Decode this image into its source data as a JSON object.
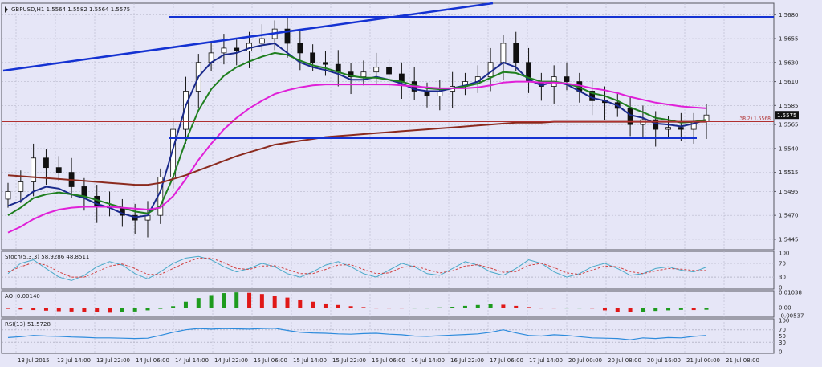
{
  "colors": {
    "background": "#e6e6f7",
    "grid": "#b9b9cc",
    "panel_border": "#55555f",
    "text": "#222222",
    "candle": "#111111",
    "price_tag_bg": "#111111",
    "ema_fast": "#1a2a8c",
    "ema_mid": "#1f7f1f",
    "ema_slow": "#e020d8",
    "ma_long": "#8b2a1e",
    "trendline": "#1432d2",
    "fib": "#b03030",
    "stoch_main": "#4aa9c8",
    "stoch_signal": "#d04040",
    "ao_up": "#1e9b1e",
    "ao_down": "#e01818",
    "rsi": "#2d8bdc"
  },
  "chart_data": [
    {
      "type": "candlestick",
      "title": "GBPUSD,H1",
      "ohlc_header": "1.5564 1.5582 1.5564 1.5575",
      "last_price": "1.5575",
      "y_ticks": [
        "1.5680",
        "1.5655",
        "1.5630",
        "1.5610",
        "1.5585",
        "1.5565",
        "1.5540",
        "1.5515",
        "1.5495",
        "1.5470",
        "1.5445"
      ],
      "ylim": [
        1.5434,
        1.5692
      ],
      "x_tick_labels": [
        "13 Jul 2015",
        "13 Jul 14:00",
        "13 Jul 22:00",
        "14 Jul 06:00",
        "14 Jul 14:00",
        "14 Jul 22:00",
        "15 Jul 06:00",
        "15 Jul 14:00",
        "15 Jul 22:00",
        "16 Jul 06:00",
        "16 Jul 14:00",
        "16 Jul 22:00",
        "17 Jul 06:00",
        "17 Jul 14:00",
        "20 Jul 00:00",
        "20 Jul 08:00",
        "20 Jul 16:00",
        "21 Jul 00:00",
        "21 Jul 08:00"
      ],
      "fib_label": "38.2) 1.5568",
      "fib_level": 1.5568,
      "close": [
        1.5495,
        1.5505,
        1.553,
        1.552,
        1.5515,
        1.55,
        1.549,
        1.548,
        1.5478,
        1.547,
        1.5465,
        1.547,
        1.551,
        1.556,
        1.56,
        1.563,
        1.564,
        1.5645,
        1.5642,
        1.565,
        1.5655,
        1.5665,
        1.565,
        1.564,
        1.563,
        1.5628,
        1.562,
        1.5615,
        1.562,
        1.5625,
        1.5618,
        1.561,
        1.56,
        1.5595,
        1.56,
        1.5605,
        1.561,
        1.5615,
        1.563,
        1.565,
        1.563,
        1.561,
        1.5605,
        1.5615,
        1.561,
        1.56,
        1.559,
        1.5588,
        1.5582,
        1.5565,
        1.557,
        1.556,
        1.5562,
        1.556,
        1.5568,
        1.5575
      ],
      "series": [
        {
          "name": "",
          "values": [
            1.548,
            1.5485,
            1.5495,
            1.55,
            1.5498,
            1.5492,
            1.5488,
            1.5482,
            1.5478,
            1.5472,
            1.5468,
            1.547,
            1.5495,
            1.554,
            1.5585,
            1.5615,
            1.563,
            1.5638,
            1.564,
            1.5645,
            1.5648,
            1.565,
            1.564,
            1.563,
            1.5625,
            1.5622,
            1.5618,
            1.5612,
            1.5612,
            1.5615,
            1.5612,
            1.5608,
            1.5602,
            1.56,
            1.56,
            1.5603,
            1.5606,
            1.561,
            1.562,
            1.563,
            1.5625,
            1.5612,
            1.5606,
            1.561,
            1.5607,
            1.56,
            1.5593,
            1.559,
            1.5585,
            1.5575,
            1.5572,
            1.5566,
            1.5565,
            1.5563,
            1.5566,
            1.557
          ]
        },
        {
          "name": "",
          "values": [
            1.547,
            1.5478,
            1.5488,
            1.5492,
            1.5494,
            1.5492,
            1.549,
            1.5486,
            1.5482,
            1.5478,
            1.5474,
            1.5472,
            1.548,
            1.551,
            1.5548,
            1.558,
            1.5602,
            1.5616,
            1.5625,
            1.5631,
            1.5636,
            1.564,
            1.5638,
            1.5632,
            1.5627,
            1.5624,
            1.562,
            1.5616,
            1.5614,
            1.5614,
            1.5612,
            1.561,
            1.5606,
            1.5603,
            1.5602,
            1.5603,
            1.5605,
            1.5608,
            1.5614,
            1.562,
            1.5619,
            1.5614,
            1.561,
            1.561,
            1.5608,
            1.5604,
            1.5598,
            1.5595,
            1.559,
            1.5583,
            1.5578,
            1.5572,
            1.557,
            1.5567,
            1.5568,
            1.557
          ]
        },
        {
          "name": "",
          "values": [
            1.5452,
            1.5458,
            1.5466,
            1.5472,
            1.5476,
            1.5478,
            1.5479,
            1.5479,
            1.5479,
            1.5478,
            1.5477,
            1.5476,
            1.5478,
            1.549,
            1.5508,
            1.5528,
            1.5545,
            1.556,
            1.5572,
            1.5582,
            1.559,
            1.5597,
            1.5601,
            1.5604,
            1.5606,
            1.5607,
            1.5607,
            1.5607,
            1.5607,
            1.5607,
            1.5607,
            1.5606,
            1.5605,
            1.5604,
            1.5603,
            1.5603,
            1.5603,
            1.5604,
            1.5606,
            1.5609,
            1.561,
            1.561,
            1.5609,
            1.5609,
            1.5608,
            1.5606,
            1.5603,
            1.5601,
            1.5598,
            1.5594,
            1.5591,
            1.5588,
            1.5586,
            1.5584,
            1.5583,
            1.5582
          ]
        },
        {
          "name": "",
          "values": [
            1.5512,
            1.5511,
            1.551,
            1.5509,
            1.5508,
            1.5507,
            1.5506,
            1.5505,
            1.5504,
            1.5503,
            1.5502,
            1.5502,
            1.5504,
            1.5508,
            1.5512,
            1.5517,
            1.5522,
            1.5527,
            1.5532,
            1.5536,
            1.554,
            1.5544,
            1.5546,
            1.5548,
            1.555,
            1.5552,
            1.5553,
            1.5554,
            1.5555,
            1.5556,
            1.5557,
            1.5558,
            1.5559,
            1.556,
            1.5561,
            1.5562,
            1.5563,
            1.5564,
            1.5565,
            1.5566,
            1.5567,
            1.5567,
            1.5567,
            1.5568,
            1.5568,
            1.5568,
            1.5568,
            1.5568,
            1.5568,
            1.5568,
            1.5568,
            1.5568,
            1.5568,
            1.5568,
            1.5568,
            1.5568
          ]
        }
      ]
    },
    {
      "type": "line",
      "title": "Stoch(5,3,3) 58.9286 48.8511",
      "y_ticks": [
        "100",
        "70",
        "30",
        "0"
      ],
      "ylim": [
        0,
        100
      ],
      "levels": [
        70,
        30
      ],
      "series": [
        {
          "name": "",
          "values": [
            40,
            70,
            80,
            55,
            30,
            20,
            35,
            60,
            75,
            65,
            40,
            25,
            45,
            70,
            85,
            90,
            80,
            60,
            45,
            55,
            70,
            60,
            40,
            30,
            45,
            65,
            75,
            60,
            40,
            30,
            50,
            70,
            60,
            40,
            35,
            55,
            75,
            65,
            45,
            35,
            55,
            80,
            70,
            45,
            30,
            40,
            60,
            70,
            55,
            35,
            40,
            55,
            60,
            50,
            45,
            59
          ]
        },
        {
          "name": "",
          "values": [
            45,
            60,
            72,
            65,
            45,
            30,
            30,
            45,
            62,
            68,
            55,
            38,
            38,
            55,
            72,
            85,
            85,
            72,
            55,
            52,
            62,
            63,
            52,
            40,
            40,
            52,
            65,
            66,
            52,
            40,
            42,
            58,
            62,
            52,
            42,
            48,
            62,
            66,
            56,
            44,
            46,
            64,
            70,
            58,
            42,
            38,
            50,
            62,
            60,
            46,
            40,
            48,
            55,
            53,
            49,
            49
          ]
        }
      ]
    },
    {
      "type": "bar",
      "title": "AO -0.00140",
      "y_ticks": [
        "0.01038",
        "0.00",
        "-0.00537"
      ],
      "ylim": [
        -0.00537,
        0.01038
      ],
      "values": [
        -0.0008,
        -0.0012,
        -0.0016,
        -0.002,
        -0.0024,
        -0.0026,
        -0.003,
        -0.0032,
        -0.0034,
        -0.003,
        -0.0026,
        -0.0018,
        -0.0008,
        0.001,
        0.004,
        0.0065,
        0.0085,
        0.0098,
        0.0103,
        0.01,
        0.0092,
        0.008,
        0.0068,
        0.0055,
        0.004,
        0.0028,
        0.0018,
        0.001,
        0.0004,
        0.0,
        -0.0003,
        -0.0005,
        -0.0004,
        -0.0002,
        0.0002,
        0.0006,
        0.0012,
        0.0018,
        0.0024,
        0.002,
        0.0012,
        0.0004,
        -0.0002,
        -0.0004,
        -0.0003,
        0.0,
        -0.0006,
        -0.0018,
        -0.0028,
        -0.0032,
        -0.0028,
        -0.0022,
        -0.0018,
        -0.0015,
        -0.0016,
        -0.0014
      ]
    },
    {
      "type": "line",
      "title": "RSI(13) 51.5728",
      "y_ticks": [
        "100",
        "70",
        "50",
        "30",
        "0"
      ],
      "ylim": [
        0,
        100
      ],
      "levels": [
        70,
        50,
        30
      ],
      "series": [
        {
          "name": "",
          "values": [
            45,
            48,
            52,
            50,
            49,
            47,
            46,
            44,
            44,
            43,
            42,
            43,
            52,
            62,
            70,
            74,
            72,
            74,
            73,
            72,
            74,
            75,
            68,
            62,
            60,
            59,
            57,
            56,
            58,
            59,
            56,
            54,
            50,
            49,
            51,
            53,
            55,
            57,
            62,
            70,
            60,
            52,
            50,
            54,
            52,
            48,
            44,
            43,
            42,
            38,
            44,
            42,
            45,
            44,
            49,
            52
          ]
        }
      ]
    }
  ]
}
